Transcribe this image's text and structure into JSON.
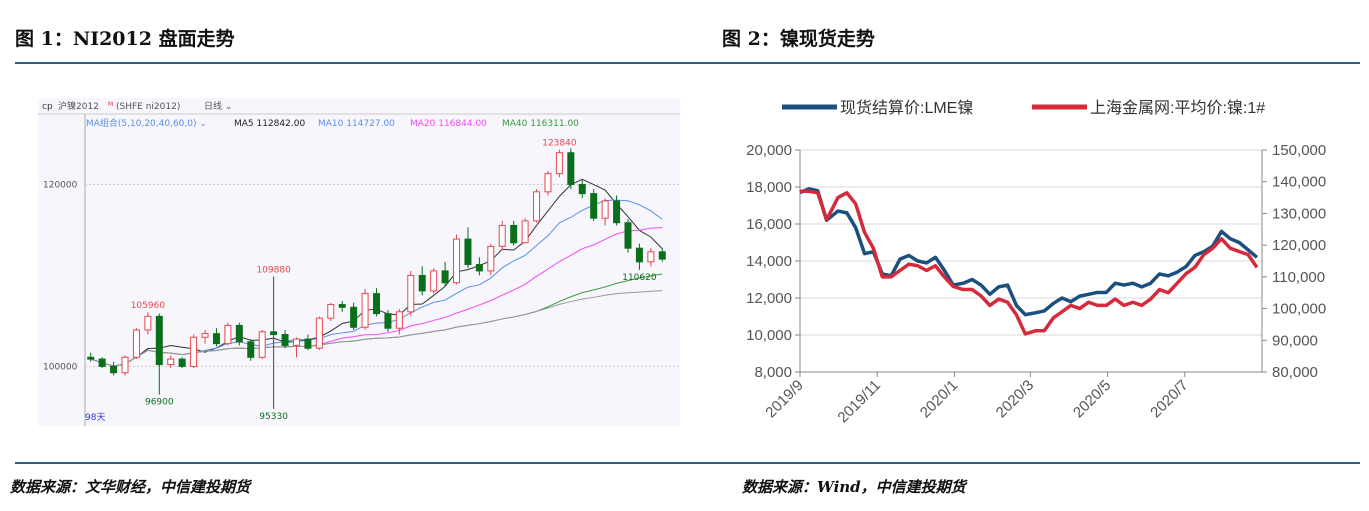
{
  "fig1": {
    "title": "图 1：NI2012 盘面走势",
    "source": "数据来源：文华财经，中信建投期货"
  },
  "fig2": {
    "title": "图 2：镍现货走势",
    "source": "数据来源：Wind，中信建投期货"
  },
  "colors": {
    "rule": "#2c5f8d",
    "up": "#e8474c",
    "down": "#0a6e1a",
    "lme": "#1b4f7e",
    "shfe": "#d42a3c",
    "ma5": "#333333",
    "ma10": "#5b8fe8",
    "ma20": "#f04cf0",
    "ma40": "#3a9a3a",
    "ma60": "#999999"
  },
  "chart_data": [
    {
      "type": "candlestick",
      "header": {
        "icon": "cp-icon",
        "symbol": "沪镍2012",
        "flag": "M",
        "code": "(SHFE ni2012)",
        "period": "日线"
      },
      "ma_legend": {
        "group": "MA组合(5,10,20,40,60,0)",
        "ma5": "MA5 112842.00",
        "ma10": "MA10 114727.00",
        "ma20": "MA20 116844.00",
        "ma40": "MA40 116311.00"
      },
      "yticks": [
        100000,
        120000
      ],
      "ylim": [
        94100,
        124900
      ],
      "footer": "98天",
      "annotations": [
        {
          "text": "105960",
          "index": 5,
          "type": "high"
        },
        {
          "text": "96900",
          "index": 6,
          "type": "low"
        },
        {
          "text": "109880",
          "index": 16,
          "type": "high"
        },
        {
          "text": "95330",
          "index": 16,
          "type": "low"
        },
        {
          "text": "123840",
          "index": 41,
          "type": "high"
        },
        {
          "text": "110620",
          "index": 48,
          "type": "low"
        }
      ],
      "ohlc": [
        [
          101000,
          101500,
          100500,
          100800
        ],
        [
          100800,
          101000,
          99800,
          100000
        ],
        [
          100000,
          100500,
          99000,
          99300
        ],
        [
          99300,
          101200,
          99000,
          101000
        ],
        [
          101000,
          104200,
          100800,
          104000
        ],
        [
          104000,
          105960,
          103500,
          105500
        ],
        [
          105500,
          105800,
          96900,
          100200
        ],
        [
          100200,
          101200,
          99800,
          100800
        ],
        [
          100800,
          101000,
          99800,
          100000
        ],
        [
          100000,
          103500,
          99800,
          103200
        ],
        [
          103200,
          104000,
          102500,
          103600
        ],
        [
          103600,
          104200,
          102200,
          102500
        ],
        [
          102500,
          104800,
          102300,
          104500
        ],
        [
          104500,
          104800,
          102300,
          102700
        ],
        [
          102700,
          103000,
          100600,
          101000
        ],
        [
          101000,
          104000,
          100800,
          103800
        ],
        [
          103800,
          109880,
          95330,
          103500
        ],
        [
          103500,
          104000,
          102000,
          102300
        ],
        [
          102300,
          103200,
          101000,
          103000
        ],
        [
          103000,
          103500,
          101800,
          102000
        ],
        [
          102000,
          105500,
          101800,
          105300
        ],
        [
          105300,
          107000,
          105000,
          106800
        ],
        [
          106800,
          107200,
          106000,
          106500
        ],
        [
          106500,
          107000,
          104000,
          104300
        ],
        [
          104300,
          108500,
          104000,
          108000
        ],
        [
          108000,
          108600,
          105500,
          105800
        ],
        [
          105800,
          106200,
          103800,
          104200
        ],
        [
          104200,
          106300,
          103500,
          106000
        ],
        [
          106000,
          110500,
          105500,
          110000
        ],
        [
          110000,
          111000,
          107800,
          108300
        ],
        [
          108300,
          110800,
          108000,
          110500
        ],
        [
          110500,
          111500,
          108800,
          109200
        ],
        [
          109200,
          114500,
          109000,
          114000
        ],
        [
          114000,
          115300,
          110800,
          111200
        ],
        [
          111200,
          112000,
          110000,
          110500
        ],
        [
          110500,
          113500,
          110000,
          113200
        ],
        [
          113200,
          116000,
          112800,
          115500
        ],
        [
          115500,
          116000,
          113300,
          113600
        ],
        [
          113600,
          116300,
          113500,
          116000
        ],
        [
          116000,
          119500,
          115800,
          119200
        ],
        [
          119200,
          121500,
          118800,
          121200
        ],
        [
          121200,
          123840,
          120800,
          123500
        ],
        [
          123500,
          124000,
          119500,
          120000
        ],
        [
          120000,
          120500,
          118500,
          119000
        ],
        [
          119000,
          119500,
          116000,
          116300
        ],
        [
          116300,
          118500,
          115500,
          118200
        ],
        [
          118200,
          118800,
          115500,
          115800
        ],
        [
          115800,
          116200,
          112500,
          113000
        ],
        [
          113000,
          113500,
          110620,
          111500
        ],
        [
          111500,
          113000,
          111000,
          112600
        ],
        [
          112600,
          113000,
          111500,
          111800
        ]
      ]
    },
    {
      "type": "line",
      "legend_position": "top",
      "grid": true,
      "yleft": {
        "lim": [
          8000,
          20000
        ],
        "ticks": [
          "8,000",
          "10,000",
          "12,000",
          "14,000",
          "16,000",
          "18,000",
          "20,000"
        ]
      },
      "yright": {
        "lim": [
          80000,
          150000
        ],
        "ticks": [
          "80,000",
          "90,000",
          "100,000",
          "110,000",
          "120,000",
          "130,000",
          "140,000",
          "150,000"
        ]
      },
      "xticks": [
        {
          "label": "2019/9",
          "date": "2019-09-01"
        },
        {
          "label": "2019/11",
          "date": "2019-11-01"
        },
        {
          "label": "2020/1",
          "date": "2020-01-01"
        },
        {
          "label": "2020/3",
          "date": "2020-03-01"
        },
        {
          "label": "2020/5",
          "date": "2020-05-01"
        },
        {
          "label": "2020/7",
          "date": "2020-07-01"
        }
      ],
      "xlim": [
        "2019-09-01",
        "2020-08-31"
      ],
      "series": [
        {
          "name": "现货结算价:LME镍",
          "axis": "left",
          "color": "#1b4f7e",
          "points": [
            [
              "2019-09-01",
              17700
            ],
            [
              "2019-09-08",
              17900
            ],
            [
              "2019-09-15",
              17800
            ],
            [
              "2019-09-22",
              16200
            ],
            [
              "2019-10-01",
              16700
            ],
            [
              "2019-10-08",
              16600
            ],
            [
              "2019-10-15",
              15800
            ],
            [
              "2019-10-22",
              14400
            ],
            [
              "2019-10-29",
              14500
            ],
            [
              "2019-11-05",
              13300
            ],
            [
              "2019-11-12",
              13200
            ],
            [
              "2019-11-19",
              14100
            ],
            [
              "2019-11-26",
              14300
            ],
            [
              "2019-12-03",
              14000
            ],
            [
              "2019-12-10",
              13900
            ],
            [
              "2019-12-17",
              14200
            ],
            [
              "2019-12-24",
              13500
            ],
            [
              "2019-12-31",
              12700
            ],
            [
              "2020-01-08",
              12800
            ],
            [
              "2020-01-15",
              13000
            ],
            [
              "2020-01-22",
              12700
            ],
            [
              "2020-01-29",
              12200
            ],
            [
              "2020-02-05",
              12600
            ],
            [
              "2020-02-12",
              12700
            ],
            [
              "2020-02-19",
              11600
            ],
            [
              "2020-02-26",
              11100
            ],
            [
              "2020-03-05",
              11200
            ],
            [
              "2020-03-12",
              11300
            ],
            [
              "2020-03-19",
              11700
            ],
            [
              "2020-03-26",
              12000
            ],
            [
              "2020-04-02",
              11800
            ],
            [
              "2020-04-09",
              12100
            ],
            [
              "2020-04-16",
              12200
            ],
            [
              "2020-04-23",
              12300
            ],
            [
              "2020-04-30",
              12300
            ],
            [
              "2020-05-07",
              12800
            ],
            [
              "2020-05-14",
              12700
            ],
            [
              "2020-05-21",
              12800
            ],
            [
              "2020-05-28",
              12600
            ],
            [
              "2020-06-04",
              12800
            ],
            [
              "2020-06-11",
              13300
            ],
            [
              "2020-06-18",
              13200
            ],
            [
              "2020-06-25",
              13400
            ],
            [
              "2020-07-02",
              13700
            ],
            [
              "2020-07-09",
              14300
            ],
            [
              "2020-07-16",
              14500
            ],
            [
              "2020-07-23",
              14800
            ],
            [
              "2020-07-30",
              15600
            ],
            [
              "2020-08-06",
              15200
            ],
            [
              "2020-08-13",
              15000
            ],
            [
              "2020-08-20",
              14600
            ],
            [
              "2020-08-27",
              14200
            ]
          ]
        },
        {
          "name": "上海金属网:平均价:镍:1#",
          "axis": "right",
          "color": "#d42a3c",
          "points": [
            [
              "2019-09-01",
              137000
            ],
            [
              "2019-09-08",
              137000
            ],
            [
              "2019-09-15",
              136500
            ],
            [
              "2019-09-22",
              128000
            ],
            [
              "2019-10-01",
              135000
            ],
            [
              "2019-10-08",
              136500
            ],
            [
              "2019-10-15",
              133000
            ],
            [
              "2019-10-22",
              124000
            ],
            [
              "2019-10-29",
              119000
            ],
            [
              "2019-11-05",
              110000
            ],
            [
              "2019-11-12",
              110000
            ],
            [
              "2019-11-19",
              112000
            ],
            [
              "2019-11-26",
              114000
            ],
            [
              "2019-12-03",
              113500
            ],
            [
              "2019-12-10",
              112000
            ],
            [
              "2019-12-17",
              113500
            ],
            [
              "2019-12-24",
              110000
            ],
            [
              "2019-12-31",
              107000
            ],
            [
              "2020-01-08",
              106000
            ],
            [
              "2020-01-15",
              106000
            ],
            [
              "2020-01-22",
              104000
            ],
            [
              "2020-01-29",
              101000
            ],
            [
              "2020-02-05",
              103000
            ],
            [
              "2020-02-12",
              102000
            ],
            [
              "2020-02-19",
              98000
            ],
            [
              "2020-02-26",
              92000
            ],
            [
              "2020-03-05",
              93000
            ],
            [
              "2020-03-12",
              93000
            ],
            [
              "2020-03-19",
              97000
            ],
            [
              "2020-03-26",
              99000
            ],
            [
              "2020-04-02",
              101000
            ],
            [
              "2020-04-09",
              100000
            ],
            [
              "2020-04-16",
              102000
            ],
            [
              "2020-04-23",
              101000
            ],
            [
              "2020-04-30",
              101000
            ],
            [
              "2020-05-07",
              103000
            ],
            [
              "2020-05-14",
              101000
            ],
            [
              "2020-05-21",
              102000
            ],
            [
              "2020-05-28",
              101000
            ],
            [
              "2020-06-04",
              103000
            ],
            [
              "2020-06-11",
              106000
            ],
            [
              "2020-06-18",
              105000
            ],
            [
              "2020-06-25",
              108000
            ],
            [
              "2020-07-02",
              111000
            ],
            [
              "2020-07-09",
              113000
            ],
            [
              "2020-07-16",
              117000
            ],
            [
              "2020-07-23",
              119000
            ],
            [
              "2020-07-30",
              122000
            ],
            [
              "2020-08-06",
              119000
            ],
            [
              "2020-08-13",
              118000
            ],
            [
              "2020-08-20",
              117000
            ],
            [
              "2020-08-27",
              113000
            ]
          ]
        }
      ]
    }
  ]
}
